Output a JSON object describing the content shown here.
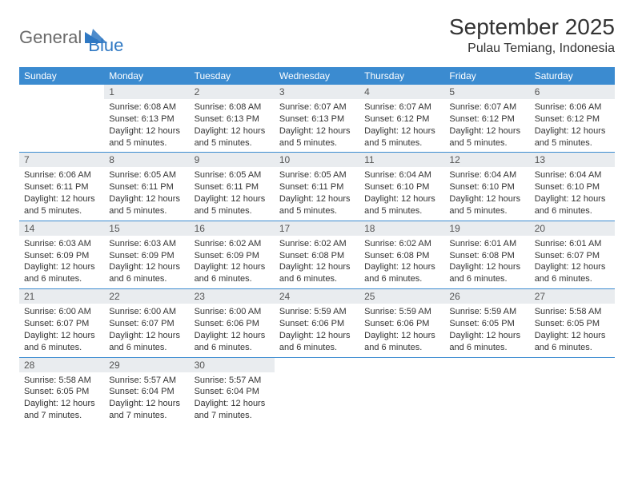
{
  "logo": {
    "text1": "General",
    "text2": "Blue",
    "triangle_color": "#2f78c3"
  },
  "title": "September 2025",
  "location": "Pulau Temiang, Indonesia",
  "colors": {
    "header_bg": "#3b8bd0",
    "header_fg": "#ffffff",
    "daybar_bg": "#e9ecef",
    "rule": "#3b8bd0",
    "text": "#333333"
  },
  "day_headers": [
    "Sunday",
    "Monday",
    "Tuesday",
    "Wednesday",
    "Thursday",
    "Friday",
    "Saturday"
  ],
  "weeks": [
    [
      null,
      {
        "n": "1",
        "sr": "6:08 AM",
        "ss": "6:13 PM",
        "dl": "12 hours and 5 minutes."
      },
      {
        "n": "2",
        "sr": "6:08 AM",
        "ss": "6:13 PM",
        "dl": "12 hours and 5 minutes."
      },
      {
        "n": "3",
        "sr": "6:07 AM",
        "ss": "6:13 PM",
        "dl": "12 hours and 5 minutes."
      },
      {
        "n": "4",
        "sr": "6:07 AM",
        "ss": "6:12 PM",
        "dl": "12 hours and 5 minutes."
      },
      {
        "n": "5",
        "sr": "6:07 AM",
        "ss": "6:12 PM",
        "dl": "12 hours and 5 minutes."
      },
      {
        "n": "6",
        "sr": "6:06 AM",
        "ss": "6:12 PM",
        "dl": "12 hours and 5 minutes."
      }
    ],
    [
      {
        "n": "7",
        "sr": "6:06 AM",
        "ss": "6:11 PM",
        "dl": "12 hours and 5 minutes."
      },
      {
        "n": "8",
        "sr": "6:05 AM",
        "ss": "6:11 PM",
        "dl": "12 hours and 5 minutes."
      },
      {
        "n": "9",
        "sr": "6:05 AM",
        "ss": "6:11 PM",
        "dl": "12 hours and 5 minutes."
      },
      {
        "n": "10",
        "sr": "6:05 AM",
        "ss": "6:11 PM",
        "dl": "12 hours and 5 minutes."
      },
      {
        "n": "11",
        "sr": "6:04 AM",
        "ss": "6:10 PM",
        "dl": "12 hours and 5 minutes."
      },
      {
        "n": "12",
        "sr": "6:04 AM",
        "ss": "6:10 PM",
        "dl": "12 hours and 5 minutes."
      },
      {
        "n": "13",
        "sr": "6:04 AM",
        "ss": "6:10 PM",
        "dl": "12 hours and 6 minutes."
      }
    ],
    [
      {
        "n": "14",
        "sr": "6:03 AM",
        "ss": "6:09 PM",
        "dl": "12 hours and 6 minutes."
      },
      {
        "n": "15",
        "sr": "6:03 AM",
        "ss": "6:09 PM",
        "dl": "12 hours and 6 minutes."
      },
      {
        "n": "16",
        "sr": "6:02 AM",
        "ss": "6:09 PM",
        "dl": "12 hours and 6 minutes."
      },
      {
        "n": "17",
        "sr": "6:02 AM",
        "ss": "6:08 PM",
        "dl": "12 hours and 6 minutes."
      },
      {
        "n": "18",
        "sr": "6:02 AM",
        "ss": "6:08 PM",
        "dl": "12 hours and 6 minutes."
      },
      {
        "n": "19",
        "sr": "6:01 AM",
        "ss": "6:08 PM",
        "dl": "12 hours and 6 minutes."
      },
      {
        "n": "20",
        "sr": "6:01 AM",
        "ss": "6:07 PM",
        "dl": "12 hours and 6 minutes."
      }
    ],
    [
      {
        "n": "21",
        "sr": "6:00 AM",
        "ss": "6:07 PM",
        "dl": "12 hours and 6 minutes."
      },
      {
        "n": "22",
        "sr": "6:00 AM",
        "ss": "6:07 PM",
        "dl": "12 hours and 6 minutes."
      },
      {
        "n": "23",
        "sr": "6:00 AM",
        "ss": "6:06 PM",
        "dl": "12 hours and 6 minutes."
      },
      {
        "n": "24",
        "sr": "5:59 AM",
        "ss": "6:06 PM",
        "dl": "12 hours and 6 minutes."
      },
      {
        "n": "25",
        "sr": "5:59 AM",
        "ss": "6:06 PM",
        "dl": "12 hours and 6 minutes."
      },
      {
        "n": "26",
        "sr": "5:59 AM",
        "ss": "6:05 PM",
        "dl": "12 hours and 6 minutes."
      },
      {
        "n": "27",
        "sr": "5:58 AM",
        "ss": "6:05 PM",
        "dl": "12 hours and 6 minutes."
      }
    ],
    [
      {
        "n": "28",
        "sr": "5:58 AM",
        "ss": "6:05 PM",
        "dl": "12 hours and 7 minutes."
      },
      {
        "n": "29",
        "sr": "5:57 AM",
        "ss": "6:04 PM",
        "dl": "12 hours and 7 minutes."
      },
      {
        "n": "30",
        "sr": "5:57 AM",
        "ss": "6:04 PM",
        "dl": "12 hours and 7 minutes."
      },
      null,
      null,
      null,
      null
    ]
  ],
  "labels": {
    "sunrise": "Sunrise:",
    "sunset": "Sunset:",
    "daylight": "Daylight:"
  }
}
